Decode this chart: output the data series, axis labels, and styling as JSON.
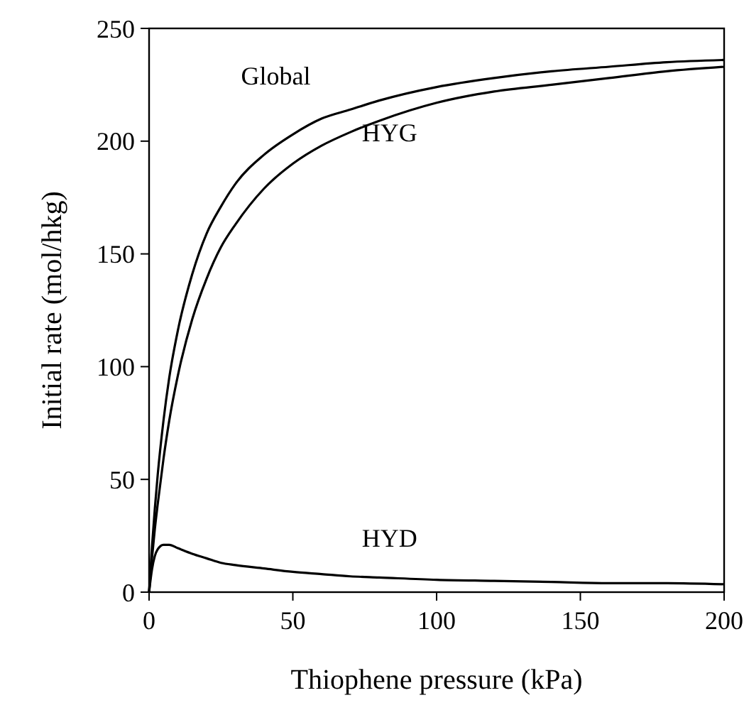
{
  "chart_data": {
    "type": "line",
    "xlabel": "Thiophene pressure (kPa)",
    "ylabel": "Initial rate (mol/hkg)",
    "x": [
      0,
      1,
      2,
      3,
      5,
      7,
      10,
      15,
      20,
      25,
      30,
      40,
      50,
      60,
      70,
      80,
      100,
      120,
      140,
      160,
      180,
      200
    ],
    "series": [
      {
        "name": "Global",
        "color": "#000000",
        "values": [
          0,
          20,
          37,
          52,
          76,
          95,
          116,
          141,
          159,
          171,
          181,
          194,
          203,
          210,
          214,
          218,
          224,
          228,
          231,
          233,
          235,
          236
        ]
      },
      {
        "name": "HYG",
        "color": "#000000",
        "values": [
          0,
          15,
          28,
          39,
          59,
          76,
          96,
          121,
          139,
          153,
          163,
          179,
          190,
          198,
          204,
          209,
          217,
          222,
          225,
          228,
          231,
          233
        ]
      },
      {
        "name": "HYD",
        "color": "#000000",
        "values": [
          0,
          10,
          16,
          19,
          21,
          21,
          19.5,
          17,
          15,
          13,
          12,
          10.5,
          9,
          8,
          7,
          6.5,
          5.5,
          5,
          4.5,
          4,
          4,
          3.5
        ]
      }
    ],
    "xlim": [
      0,
      200
    ],
    "xticks": [
      0,
      50,
      100,
      150,
      200
    ],
    "ylim": [
      0,
      250
    ],
    "yticks": [
      0,
      50,
      100,
      150,
      200,
      250
    ],
    "grid": false,
    "legend": false,
    "marker": "none",
    "line_style": "solid"
  }
}
